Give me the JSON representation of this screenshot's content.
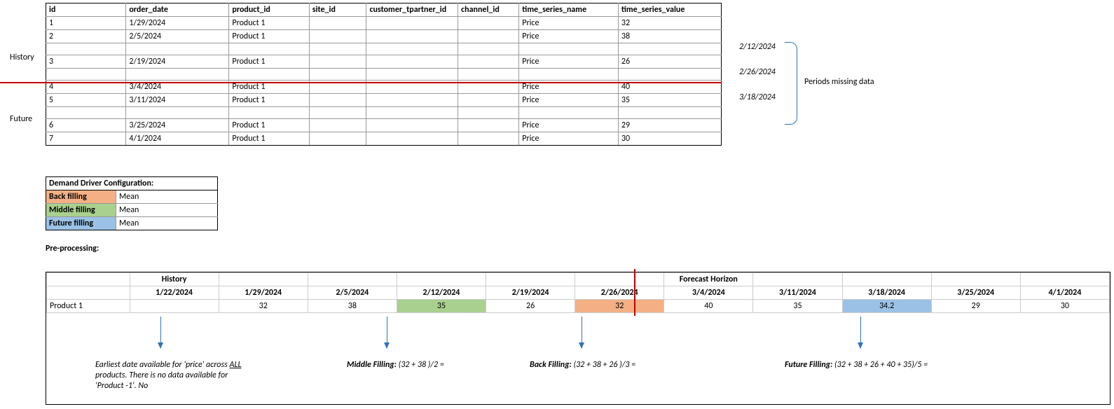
{
  "sections": {
    "history": "History",
    "future": "Future"
  },
  "table": {
    "columns": [
      "id",
      "order_date",
      "product_id",
      "site_id",
      "customer_tpartner_id",
      "channel_id",
      "time_series_name",
      "time_series_value"
    ],
    "rows": [
      {
        "id": "1",
        "order_date": "1/29/2024",
        "product_id": "Product 1",
        "site_id": "",
        "customer_tpartner_id": "",
        "channel_id": "",
        "time_series_name": "Price",
        "time_series_value": "32"
      },
      {
        "id": "2",
        "order_date": "2/5/2024",
        "product_id": "Product 1",
        "site_id": "",
        "customer_tpartner_id": "",
        "channel_id": "",
        "time_series_name": "Price",
        "time_series_value": "38"
      },
      {
        "id": "",
        "order_date": "",
        "product_id": "",
        "site_id": "",
        "customer_tpartner_id": "",
        "channel_id": "",
        "time_series_name": "",
        "time_series_value": ""
      },
      {
        "id": "3",
        "order_date": "2/19/2024",
        "product_id": "Product 1",
        "site_id": "",
        "customer_tpartner_id": "",
        "channel_id": "",
        "time_series_name": "Price",
        "time_series_value": "26"
      },
      {
        "id": "",
        "order_date": "",
        "product_id": "",
        "site_id": "",
        "customer_tpartner_id": "",
        "channel_id": "",
        "time_series_name": "",
        "time_series_value": ""
      },
      {
        "id": "4",
        "order_date": "3/4/2024",
        "product_id": "Product 1",
        "site_id": "",
        "customer_tpartner_id": "",
        "channel_id": "",
        "time_series_name": "Price",
        "time_series_value": "40"
      },
      {
        "id": "5",
        "order_date": "3/11/2024",
        "product_id": "Product 1",
        "site_id": "",
        "customer_tpartner_id": "",
        "channel_id": "",
        "time_series_name": "Price",
        "time_series_value": "35"
      },
      {
        "id": "",
        "order_date": "",
        "product_id": "",
        "site_id": "",
        "customer_tpartner_id": "",
        "channel_id": "",
        "time_series_name": "",
        "time_series_value": ""
      },
      {
        "id": "6",
        "order_date": "3/25/2024",
        "product_id": "Product 1",
        "site_id": "",
        "customer_tpartner_id": "",
        "channel_id": "",
        "time_series_name": "Price",
        "time_series_value": "29"
      },
      {
        "id": "7",
        "order_date": "4/1/2024",
        "product_id": "Product 1",
        "site_id": "",
        "customer_tpartner_id": "",
        "channel_id": "",
        "time_series_name": "Price",
        "time_series_value": "30"
      }
    ]
  },
  "missing": {
    "dates": [
      "2/12/2024",
      "2/26/2024",
      "3/18/2024"
    ],
    "label": "Periods missing data"
  },
  "config": {
    "title": "Demand Driver Configuration:",
    "rows": [
      {
        "name": "Back filling",
        "value": "Mean",
        "color": "#f4b084"
      },
      {
        "name": "Middle filling",
        "value": "Mean",
        "color": "#a9d08e"
      },
      {
        "name": "Future filling",
        "value": "Mean",
        "color": "#9bc2e6"
      }
    ]
  },
  "preproc": {
    "label": "Pre-processing:",
    "header1": {
      "history": "History",
      "forecast": "Forecast Horizon"
    },
    "dates": [
      "1/22/2024",
      "1/29/2024",
      "2/5/2024",
      "2/12/2024",
      "2/19/2024",
      "2/26/2024",
      "3/4/2024",
      "3/11/2024",
      "3/18/2024",
      "3/25/2024",
      "4/1/2024"
    ],
    "product": "Product 1",
    "values": [
      "",
      "32",
      "38",
      "35",
      "26",
      "32",
      "40",
      "35",
      "34.2",
      "29",
      "30"
    ],
    "fills": {
      "3": "mid",
      "5": "back",
      "8": "fut"
    }
  },
  "notes": {
    "earliest": "Earliest date available for 'price' across ALL products. There is no data available for 'Product -1'. No",
    "middle_b": "Middle Filling:",
    "middle": " (32 + 38 )/2 =",
    "back_b": "Back Filling:",
    "back": " (32 + 38 + 26 )/3 =",
    "future_b": "Future Filling:",
    "future": " (32 + 38 + 26 + 40 + 35)/5 ="
  },
  "styling": {
    "divider_color": "#c00000",
    "arrow_color": "#2e75b6",
    "brace_color": "#2e75b6"
  }
}
